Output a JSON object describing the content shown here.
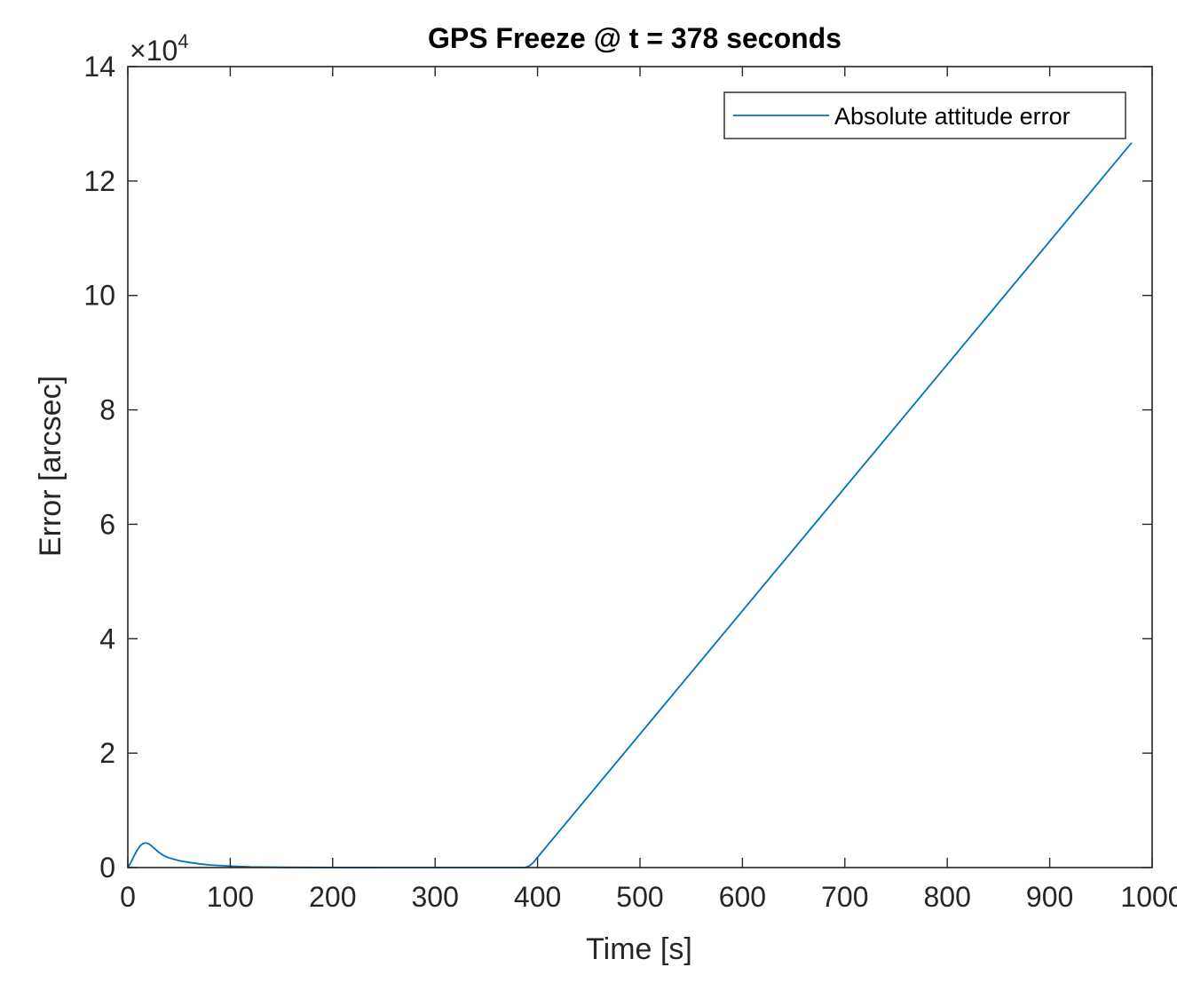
{
  "chart_data": {
    "type": "line",
    "title": "GPS Freeze @ t = 378 seconds",
    "xlabel": "Time [s]",
    "ylabel": "Error [arcsec]",
    "xlim": [
      0,
      1000
    ],
    "ylim": [
      0,
      140000
    ],
    "x_ticks": [
      0,
      100,
      200,
      300,
      400,
      500,
      600,
      700,
      800,
      900,
      1000
    ],
    "x_tick_labels": [
      "0",
      "100",
      "200",
      "300",
      "400",
      "500",
      "600",
      "700",
      "800",
      "900",
      "1000"
    ],
    "y_ticks": [
      0,
      20000,
      40000,
      60000,
      80000,
      100000,
      120000,
      140000
    ],
    "y_tick_labels": [
      "0",
      "2",
      "4",
      "6",
      "8",
      "10",
      "12",
      "14"
    ],
    "y_multiplier": {
      "base": "×10",
      "exponent": "4"
    },
    "grid": false,
    "box": true,
    "legend_position": "top-right",
    "series": [
      {
        "name": "Absolute attitude error",
        "color": "#0072BD",
        "x": [
          0,
          3,
          6,
          9,
          12,
          15,
          18,
          21,
          25,
          30,
          35,
          40,
          50,
          60,
          70,
          80,
          100,
          120,
          150,
          200,
          250,
          300,
          350,
          388,
          392,
          396,
          400,
          980
        ],
        "y": [
          0,
          900,
          2000,
          3000,
          3800,
          4200,
          4300,
          4100,
          3500,
          2700,
          2100,
          1700,
          1200,
          900,
          650,
          450,
          250,
          120,
          50,
          10,
          0,
          0,
          0,
          0,
          300,
          900,
          1800,
          126700
        ]
      }
    ]
  }
}
